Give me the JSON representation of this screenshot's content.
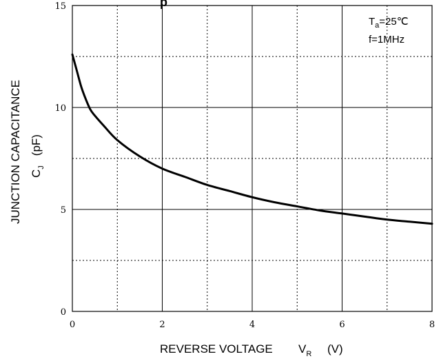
{
  "chart_data": {
    "type": "line",
    "title_fragment": "p",
    "xlabel": {
      "main": "REVERSE VOLTAGE",
      "symbol": "V",
      "subscript": "R",
      "unit": "(V)"
    },
    "ylabel": {
      "line1": "JUNCTION CAPACITANCE",
      "symbol": "C",
      "subscript": "J",
      "unit": "(pF)"
    },
    "xlim": [
      0,
      8
    ],
    "ylim": [
      0,
      15
    ],
    "x_ticks": [
      0,
      2,
      4,
      6,
      8
    ],
    "y_ticks": [
      0,
      5,
      10,
      15
    ],
    "x_tick_labels": [
      "0",
      "2",
      "4",
      "6",
      "8"
    ],
    "y_tick_labels": [
      "0",
      "5",
      "10",
      "15"
    ],
    "grid": {
      "major_solid": true,
      "minor_dotted": true
    },
    "annotations": {
      "temp": {
        "symbol": "T",
        "subscript": "a",
        "value": "=25℃"
      },
      "freq": "f=1MHz"
    },
    "series": [
      {
        "color": "#000000",
        "x": [
          0.0,
          0.1,
          0.2,
          0.3,
          0.4,
          0.5,
          0.7,
          1.0,
          1.5,
          2.0,
          2.5,
          3.0,
          3.5,
          4.0,
          4.5,
          5.0,
          5.5,
          6.0,
          6.5,
          7.0,
          7.5,
          8.0
        ],
        "y": [
          12.6,
          11.8,
          11.0,
          10.4,
          9.9,
          9.6,
          9.1,
          8.4,
          7.6,
          7.0,
          6.6,
          6.2,
          5.9,
          5.6,
          5.35,
          5.15,
          4.95,
          4.8,
          4.65,
          4.5,
          4.4,
          4.3
        ]
      }
    ]
  }
}
